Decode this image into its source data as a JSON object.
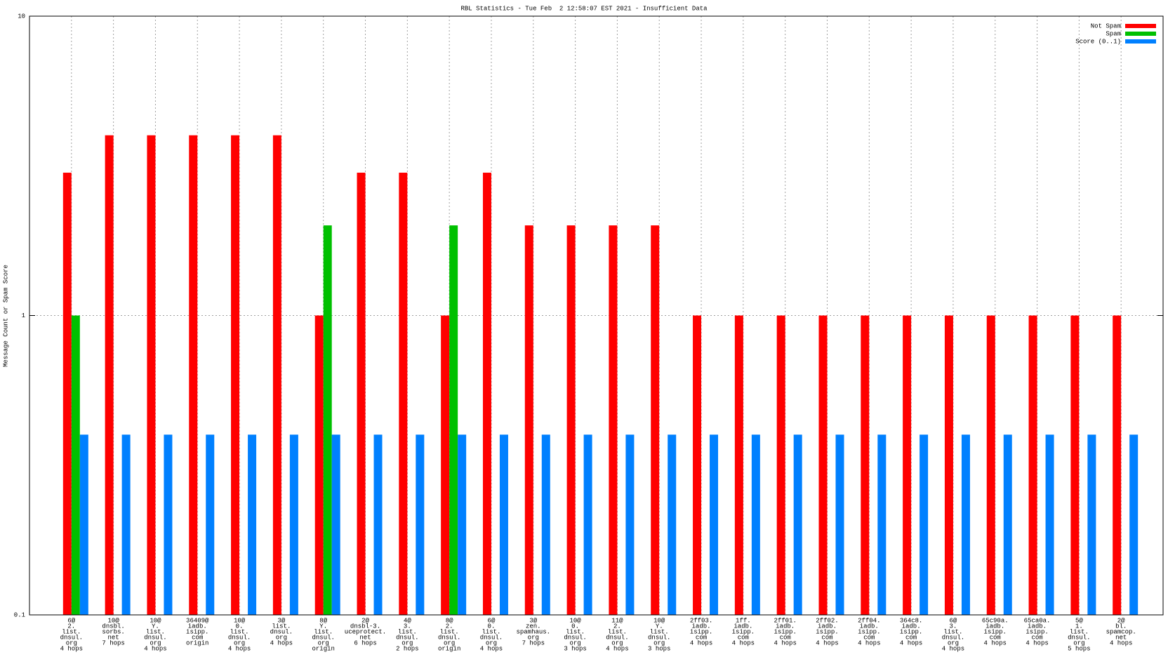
{
  "chart_data": {
    "type": "bar",
    "title": "RBL Statistics - Tue Feb  2 12:58:07 EST 2021 - Insufficient Data",
    "y_label": "Message Count or Spam Score",
    "log_y": true,
    "ylim": [
      0.1,
      10
    ],
    "yticks": [
      0.1,
      1,
      10
    ],
    "grid": true,
    "legend": "top-right",
    "categories": [
      [
        "6@",
        "2.",
        "list.",
        "dnsul.",
        "org",
        "4 hops"
      ],
      [
        "10@",
        "dnsbl.",
        "sorbs.",
        "net",
        "7 hops"
      ],
      [
        "10@",
        "Y.",
        "list.",
        "dnsul.",
        "org",
        "4 hops"
      ],
      [
        "36409@",
        "iadb.",
        "isipp.",
        "com",
        "origin"
      ],
      [
        "10@",
        "0.",
        "list.",
        "dnsul.",
        "org",
        "4 hops"
      ],
      [
        "3@",
        "list.",
        "dnsul.",
        "org",
        "4 hops"
      ],
      [
        "8@",
        "Y.",
        "list.",
        "dnsul.",
        "org",
        "origin"
      ],
      [
        "2@",
        "dnsbl-3.",
        "uceprotect.",
        "net",
        "6 hops"
      ],
      [
        "4@",
        "3.",
        "list.",
        "dnsul.",
        "org",
        "2 hops"
      ],
      [
        "8@",
        "2.",
        "list.",
        "dnsul.",
        "org",
        "origin"
      ],
      [
        "6@",
        "0.",
        "list.",
        "dnsul.",
        "org",
        "4 hops"
      ],
      [
        "3@",
        "zen.",
        "spamhaus.",
        "org",
        "7 hops"
      ],
      [
        "10@",
        "0.",
        "list.",
        "dnsul.",
        "org",
        "3 hops"
      ],
      [
        "11@",
        "2.",
        "list.",
        "dnsul.",
        "org",
        "4 hops"
      ],
      [
        "10@",
        "Y.",
        "list.",
        "dnsul.",
        "org",
        "3 hops"
      ],
      [
        "2ff03.",
        "iadb.",
        "isipp.",
        "com",
        "4 hops"
      ],
      [
        "1ff.",
        "iadb.",
        "isipp.",
        "com",
        "4 hops"
      ],
      [
        "2ff01.",
        "iadb.",
        "isipp.",
        "com",
        "4 hops"
      ],
      [
        "2ff02.",
        "iadb.",
        "isipp.",
        "com",
        "4 hops"
      ],
      [
        "2ff04.",
        "iadb.",
        "isipp.",
        "com",
        "4 hops"
      ],
      [
        "364c8.",
        "iadb.",
        "isipp.",
        "com",
        "4 hops"
      ],
      [
        "6@",
        "3.",
        "list.",
        "dnsul.",
        "org",
        "4 hops"
      ],
      [
        "65c90a.",
        "iadb.",
        "isipp.",
        "com",
        "4 hops"
      ],
      [
        "65ca0a.",
        "iadb.",
        "isipp.",
        "com",
        "4 hops"
      ],
      [
        "5@",
        "1.",
        "list.",
        "dnsul.",
        "org",
        "5 hops"
      ],
      [
        "2@",
        "bl.",
        "spamcop.",
        "net",
        "4 hops"
      ]
    ],
    "series": [
      {
        "name": "Not Spam",
        "color": "#ff0000",
        "values": [
          3,
          4,
          4,
          4,
          4,
          4,
          1,
          3,
          3,
          1,
          3,
          2,
          2,
          2,
          2,
          1,
          1,
          1,
          1,
          1,
          1,
          1,
          1,
          1,
          1,
          1
        ]
      },
      {
        "name": "Spam",
        "color": "#00c000",
        "values": [
          1,
          null,
          null,
          null,
          null,
          null,
          2,
          null,
          null,
          2,
          null,
          null,
          null,
          null,
          null,
          null,
          null,
          null,
          null,
          null,
          null,
          null,
          null,
          null,
          null,
          null
        ]
      },
      {
        "name": "Score (0..1)",
        "color": "#0080ff",
        "values": [
          0.4,
          0.4,
          0.4,
          0.4,
          0.4,
          0.4,
          0.4,
          0.4,
          0.4,
          0.4,
          0.4,
          0.4,
          0.4,
          0.4,
          0.4,
          0.4,
          0.4,
          0.4,
          0.4,
          0.4,
          0.4,
          0.4,
          0.4,
          0.4,
          0.4,
          0.4
        ]
      }
    ]
  }
}
